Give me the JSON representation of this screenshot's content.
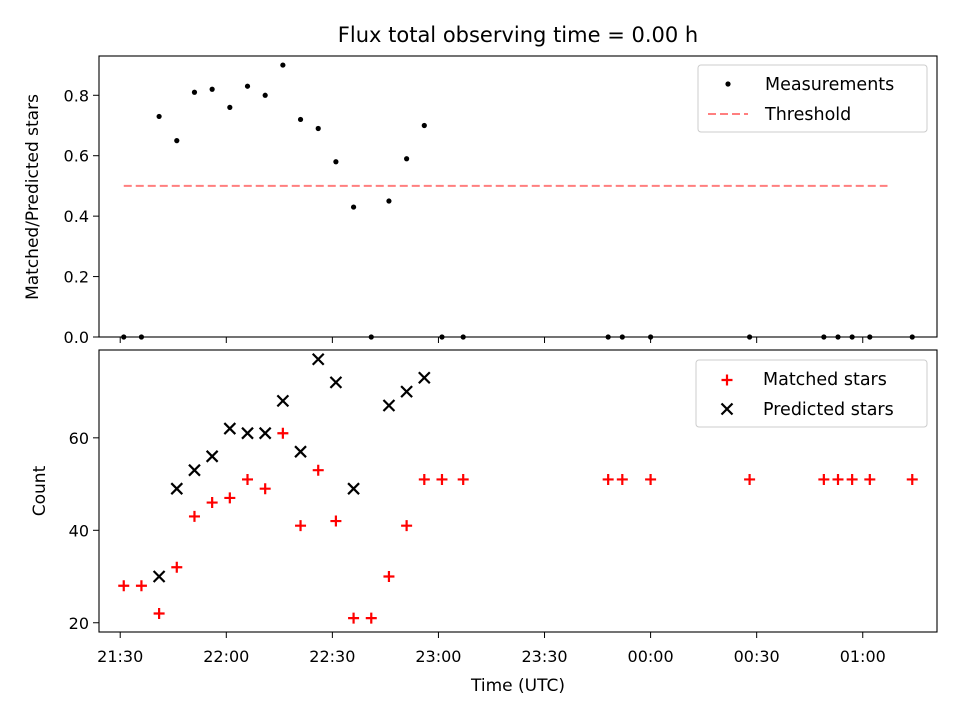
{
  "chart_data": [
    {
      "type": "scatter",
      "title": "Flux total observing time = 0.00 h",
      "xlabel": "",
      "ylabel": "Matched/Predicted stars",
      "ylim": [
        0,
        0.93
      ],
      "yticks": [
        "0.0",
        "0.2",
        "0.4",
        "0.6",
        "0.8"
      ],
      "legend_position": "top-right",
      "threshold": {
        "name": "Threshold",
        "value": 0.5,
        "x_start": "21:31",
        "x_end": "01:07",
        "color": "#ff7f7f",
        "style": "dashed"
      },
      "series": [
        {
          "name": "Measurements",
          "color": "#000000",
          "marker": "dot",
          "points": [
            [
              "21:31",
              0.0
            ],
            [
              "21:36",
              0.0
            ],
            [
              "21:41",
              0.73
            ],
            [
              "21:46",
              0.65
            ],
            [
              "21:51",
              0.81
            ],
            [
              "21:56",
              0.82
            ],
            [
              "22:01",
              0.76
            ],
            [
              "22:06",
              0.83
            ],
            [
              "22:11",
              0.8
            ],
            [
              "22:16",
              0.9
            ],
            [
              "22:21",
              0.72
            ],
            [
              "22:26",
              0.69
            ],
            [
              "22:31",
              0.58
            ],
            [
              "22:36",
              0.43
            ],
            [
              "22:41",
              0.0
            ],
            [
              "22:46",
              0.45
            ],
            [
              "22:51",
              0.59
            ],
            [
              "22:56",
              0.7
            ],
            [
              "23:01",
              0.0
            ],
            [
              "23:07",
              0.0
            ],
            [
              "23:48",
              0.0
            ],
            [
              "23:52",
              0.0
            ],
            [
              "00:00",
              0.0
            ],
            [
              "00:28",
              0.0
            ],
            [
              "00:49",
              0.0
            ],
            [
              "00:53",
              0.0
            ],
            [
              "00:57",
              0.0
            ],
            [
              "01:02",
              0.0
            ],
            [
              "01:14",
              0.0
            ]
          ]
        }
      ]
    },
    {
      "type": "scatter",
      "title": "",
      "xlabel": "Time (UTC)",
      "ylabel": "Count",
      "ylim": [
        18,
        79
      ],
      "yticks": [
        "20",
        "40",
        "60"
      ],
      "xticks": [
        "21:30",
        "22:00",
        "22:30",
        "23:00",
        "23:30",
        "00:00",
        "00:30",
        "01:00"
      ],
      "legend_position": "top-right",
      "series": [
        {
          "name": "Matched stars",
          "color": "#ff0000",
          "marker": "plus",
          "points": [
            [
              "21:31",
              28
            ],
            [
              "21:36",
              28
            ],
            [
              "21:41",
              22
            ],
            [
              "21:46",
              32
            ],
            [
              "21:51",
              43
            ],
            [
              "21:56",
              46
            ],
            [
              "22:01",
              47
            ],
            [
              "22:06",
              51
            ],
            [
              "22:11",
              49
            ],
            [
              "22:16",
              61
            ],
            [
              "22:21",
              41
            ],
            [
              "22:26",
              53
            ],
            [
              "22:31",
              42
            ],
            [
              "22:36",
              21
            ],
            [
              "22:41",
              21
            ],
            [
              "22:46",
              30
            ],
            [
              "22:51",
              41
            ],
            [
              "22:56",
              51
            ],
            [
              "23:01",
              51
            ],
            [
              "23:07",
              51
            ],
            [
              "23:48",
              51
            ],
            [
              "23:52",
              51
            ],
            [
              "00:00",
              51
            ],
            [
              "00:28",
              51
            ],
            [
              "00:49",
              51
            ],
            [
              "00:53",
              51
            ],
            [
              "00:57",
              51
            ],
            [
              "01:02",
              51
            ],
            [
              "01:14",
              51
            ]
          ]
        },
        {
          "name": "Predicted stars",
          "color": "#000000",
          "marker": "x",
          "points": [
            [
              "21:41",
              30
            ],
            [
              "21:46",
              49
            ],
            [
              "21:51",
              53
            ],
            [
              "21:56",
              56
            ],
            [
              "22:01",
              62
            ],
            [
              "22:06",
              61
            ],
            [
              "22:11",
              61
            ],
            [
              "22:16",
              68
            ],
            [
              "22:21",
              57
            ],
            [
              "22:26",
              77
            ],
            [
              "22:31",
              72
            ],
            [
              "22:36",
              49
            ],
            [
              "22:46",
              67
            ],
            [
              "22:51",
              70
            ],
            [
              "22:56",
              73
            ]
          ]
        }
      ]
    }
  ]
}
